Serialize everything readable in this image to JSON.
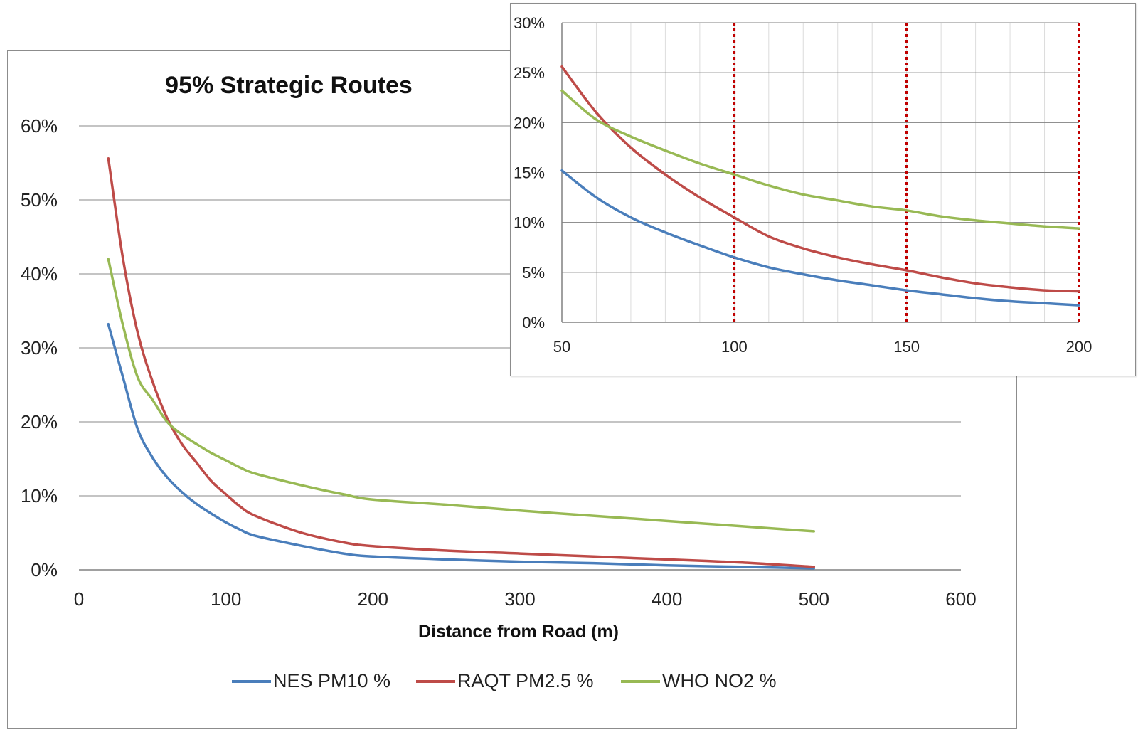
{
  "chart_data": [
    {
      "type": "line",
      "title": "95% Strategic Routes",
      "xlabel": "Distance from Road (m)",
      "ylabel": "",
      "xlim": [
        0,
        600
      ],
      "ylim": [
        0,
        60
      ],
      "x_ticks": [
        "0",
        "100",
        "200",
        "300",
        "400",
        "500",
        "600"
      ],
      "y_ticks": [
        "0%",
        "10%",
        "20%",
        "30%",
        "40%",
        "50%",
        "60%"
      ],
      "grid": "horizontal",
      "legend_position": "bottom",
      "series": [
        {
          "name": "NES PM10 %",
          "color": "#4a7ebb",
          "x": [
            20,
            30,
            40,
            50,
            60,
            70,
            80,
            90,
            100,
            110,
            120,
            150,
            180,
            200,
            250,
            300,
            350,
            400,
            450,
            500
          ],
          "y": [
            33.2,
            26,
            19,
            15.2,
            12.5,
            10.5,
            8.9,
            7.6,
            6.4,
            5.4,
            4.6,
            3.3,
            2.2,
            1.8,
            1.4,
            1.1,
            0.9,
            0.6,
            0.4,
            0.2
          ]
        },
        {
          "name": "RAQT PM2.5 %",
          "color": "#be4b48",
          "x": [
            20,
            30,
            40,
            50,
            60,
            70,
            80,
            90,
            100,
            110,
            120,
            150,
            180,
            200,
            250,
            300,
            350,
            400,
            450,
            500
          ],
          "y": [
            55.6,
            42,
            32,
            25.5,
            20.5,
            17,
            14.5,
            12,
            10.2,
            8.5,
            7.3,
            5.1,
            3.7,
            3.2,
            2.6,
            2.2,
            1.8,
            1.4,
            1.0,
            0.4
          ]
        },
        {
          "name": "WHO NO2 %",
          "color": "#98b954",
          "x": [
            20,
            30,
            40,
            50,
            60,
            70,
            80,
            90,
            100,
            110,
            120,
            150,
            180,
            200,
            250,
            300,
            350,
            400,
            450,
            500
          ],
          "y": [
            42,
            33,
            26,
            23,
            20,
            18.3,
            17,
            15.8,
            14.8,
            13.8,
            13,
            11.5,
            10.2,
            9.5,
            8.8,
            8.0,
            7.3,
            6.6,
            5.9,
            5.2
          ]
        }
      ]
    },
    {
      "type": "line",
      "title": "",
      "xlabel": "",
      "ylabel": "",
      "xlim": [
        50,
        200
      ],
      "ylim": [
        0,
        30
      ],
      "x_ticks": [
        "50",
        "100",
        "150",
        "200"
      ],
      "y_ticks": [
        "0%",
        "5%",
        "10%",
        "15%",
        "20%",
        "25%",
        "30%"
      ],
      "grid": "horizontal-and-vertical",
      "reference_lines_x": [
        100,
        150,
        200
      ],
      "reference_line_color": "#c00000",
      "series": [
        {
          "name": "NES PM10 %",
          "color": "#4a7ebb",
          "x": [
            50,
            60,
            70,
            80,
            90,
            100,
            110,
            120,
            130,
            140,
            150,
            160,
            170,
            180,
            190,
            200
          ],
          "y": [
            15.2,
            12.5,
            10.5,
            9.0,
            7.7,
            6.5,
            5.5,
            4.8,
            4.2,
            3.7,
            3.2,
            2.8,
            2.4,
            2.1,
            1.9,
            1.7
          ]
        },
        {
          "name": "RAQT PM2.5 %",
          "color": "#be4b48",
          "x": [
            50,
            60,
            70,
            80,
            90,
            100,
            110,
            120,
            130,
            140,
            150,
            160,
            170,
            180,
            190,
            200
          ],
          "y": [
            25.6,
            21.0,
            17.5,
            14.8,
            12.5,
            10.5,
            8.6,
            7.4,
            6.5,
            5.8,
            5.2,
            4.5,
            3.9,
            3.5,
            3.2,
            3.1
          ]
        },
        {
          "name": "WHO NO2 %",
          "color": "#98b954",
          "x": [
            50,
            60,
            70,
            80,
            90,
            100,
            110,
            120,
            130,
            140,
            150,
            160,
            170,
            180,
            190,
            200
          ],
          "y": [
            23.2,
            20.3,
            18.6,
            17.2,
            15.9,
            14.8,
            13.7,
            12.8,
            12.2,
            11.6,
            11.2,
            10.6,
            10.2,
            9.9,
            9.6,
            9.4
          ]
        }
      ]
    }
  ]
}
